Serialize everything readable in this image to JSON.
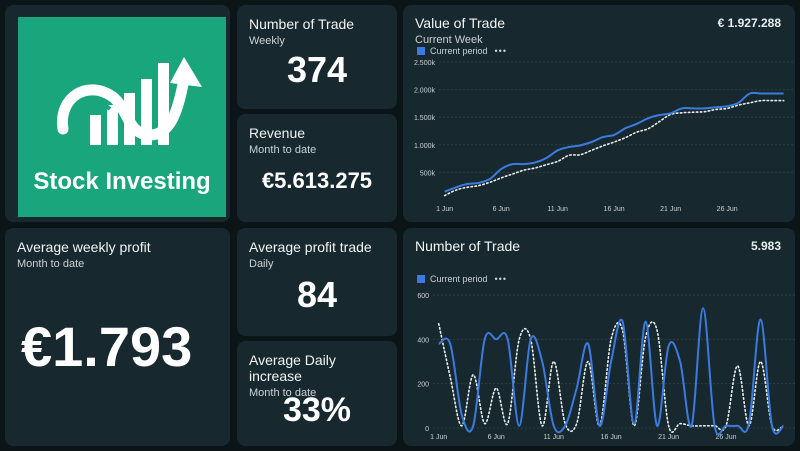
{
  "logo": {
    "text": "Stock Investing",
    "bg": "#1aa67c"
  },
  "kpis": {
    "num_trade": {
      "title": "Number of Trade",
      "subtitle": "Weekly",
      "value": "374"
    },
    "revenue": {
      "title": "Revenue",
      "subtitle": "Month to date",
      "value": "€5.613.275"
    },
    "avg_weekly_profit": {
      "title": "Average weekly profit",
      "subtitle": "Month to date",
      "value": "€1.793"
    },
    "avg_profit_trade": {
      "title": "Average profit trade",
      "subtitle": "Daily",
      "value": "84"
    },
    "avg_daily_increase": {
      "title": "Average Daily increase",
      "subtitle": "Month to date",
      "value": "33%"
    }
  },
  "colors": {
    "current": "#3b7be0",
    "previous": "#e8eef0",
    "card": "#17282e"
  },
  "chart_data": [
    {
      "type": "line",
      "title": "Value of Trade",
      "subtitle": "Current Week",
      "total": "€ 1.927.288",
      "legend": {
        "current": "Current period",
        "previous": ""
      },
      "y_ticks": [
        "2.500k",
        "2.000k",
        "1.500k",
        "1.000k",
        "500k"
      ],
      "x_ticks": [
        "1 Jun",
        "6 Jun",
        "11 Jun",
        "16 Jun",
        "21 Jun",
        "26 Jun"
      ],
      "ylim": [
        0,
        2500
      ],
      "xlim": [
        -0.5,
        31
      ],
      "grid": true,
      "series": [
        {
          "name": "Current period",
          "x": [
            0,
            1,
            2,
            3,
            4,
            5,
            6,
            7,
            8,
            9,
            10,
            11,
            12,
            13,
            14,
            15,
            16,
            17,
            18,
            19,
            20,
            21,
            22,
            23,
            24,
            25,
            26,
            27,
            28,
            29,
            30
          ],
          "values": [
            150,
            230,
            290,
            310,
            380,
            560,
            650,
            650,
            680,
            760,
            900,
            960,
            990,
            1050,
            1140,
            1180,
            1300,
            1380,
            1480,
            1540,
            1570,
            1660,
            1660,
            1660,
            1680,
            1700,
            1760,
            1930,
            1930,
            1930,
            1930
          ]
        },
        {
          "name": "",
          "x": [
            0,
            1,
            2,
            3,
            4,
            5,
            6,
            7,
            8,
            9,
            10,
            11,
            12,
            13,
            14,
            15,
            16,
            17,
            18,
            19,
            20,
            21,
            22,
            23,
            24,
            25,
            26,
            27,
            28,
            29,
            30
          ],
          "values": [
            80,
            180,
            230,
            260,
            320,
            400,
            470,
            540,
            580,
            640,
            700,
            810,
            820,
            900,
            980,
            1050,
            1130,
            1230,
            1290,
            1420,
            1550,
            1580,
            1590,
            1600,
            1640,
            1660,
            1720,
            1760,
            1800,
            1800,
            1800
          ]
        }
      ]
    },
    {
      "type": "line",
      "title": "Number of Trade",
      "subtitle": "",
      "total": "5.983",
      "legend": {
        "current": "Current period",
        "previous": ""
      },
      "y_ticks": [
        "600",
        "400",
        "200",
        "0"
      ],
      "x_ticks": [
        "1 Jun",
        "6 Jun",
        "11 Jun",
        "16 Jun",
        "21 Jun",
        "26 Jun"
      ],
      "ylim": [
        0,
        600
      ],
      "xlim": [
        -0.5,
        31
      ],
      "grid": true,
      "series": [
        {
          "name": "Current period",
          "x": [
            0,
            1,
            2,
            3,
            4,
            5,
            6,
            7,
            8,
            9,
            10,
            11,
            12,
            13,
            14,
            15,
            16,
            17,
            18,
            19,
            20,
            21,
            22,
            23,
            24,
            25,
            26,
            27,
            28,
            29,
            30
          ],
          "values": [
            380,
            380,
            60,
            10,
            400,
            400,
            400,
            10,
            400,
            300,
            10,
            10,
            180,
            380,
            10,
            300,
            480,
            20,
            480,
            10,
            370,
            300,
            10,
            540,
            10,
            10,
            10,
            20,
            490,
            10,
            10
          ]
        },
        {
          "name": "",
          "x": [
            0,
            1,
            2,
            3,
            4,
            5,
            6,
            7,
            8,
            9,
            10,
            11,
            12,
            13,
            14,
            15,
            16,
            17,
            18,
            19,
            20,
            21,
            22,
            23,
            24,
            25,
            26,
            27,
            28,
            29,
            30
          ],
          "values": [
            470,
            230,
            10,
            240,
            20,
            180,
            20,
            400,
            400,
            10,
            300,
            20,
            20,
            300,
            10,
            400,
            440,
            10,
            410,
            440,
            10,
            20,
            10,
            10,
            10,
            10,
            280,
            10,
            300,
            10,
            10
          ]
        }
      ]
    }
  ]
}
